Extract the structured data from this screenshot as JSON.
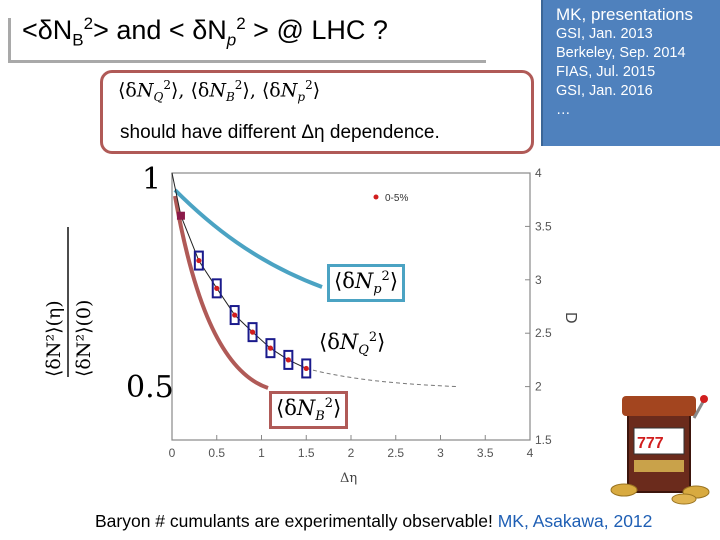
{
  "title": {
    "part1": "<δN",
    "sub1": "B",
    "sup1": "2",
    "part2": "> and < δN",
    "sub2": "p",
    "sup2": "2",
    "part3": " > @ LHC ?"
  },
  "box": {
    "formula": "⟨δN_Q²⟩, ⟨δN_B²⟩, ⟨δN_p²⟩",
    "text": "should have different Δη dependence."
  },
  "presentations": {
    "title": "MK, presentations",
    "items": [
      "GSI, Jan. 2013",
      "Berkeley, Sep. 2014",
      "FIAS, Jul. 2015",
      "GSI, Jan. 2016",
      "…"
    ]
  },
  "footer": {
    "text": "Baryon # cumulants are experimentally observable! ",
    "ref": "MK, Asakawa, 2012"
  },
  "plot": {
    "y_label_top": "1",
    "y_label_bottom": "0.5",
    "x_axis_title": "Δη",
    "right_axis_title": "D",
    "legend": "0-5%",
    "x_ticks": [
      "0",
      "0.5",
      "1",
      "1.5",
      "2",
      "2.5",
      "3",
      "3.5",
      "4"
    ],
    "y_ticks": [
      "4",
      "3.5",
      "3",
      "2.5",
      "2",
      "1.5"
    ],
    "labels": {
      "np": "⟨δN_p²⟩",
      "nq": "⟨δN_Q²⟩",
      "nb": "⟨δN_B²⟩"
    },
    "colors": {
      "np": "#4ba3c3",
      "nb": "#b05a57",
      "data": "#1a1a8c",
      "points": "#d11e1e"
    }
  },
  "chart_data": {
    "type": "scatter",
    "xlabel": "Δη",
    "ylabel": "D",
    "xlim": [
      0,
      4
    ],
    "ylim": [
      1.5,
      4
    ],
    "series": [
      {
        "name": "0-5%",
        "x": [
          0.1,
          0.3,
          0.5,
          0.7,
          0.9,
          1.1,
          1.3,
          1.5
        ],
        "y": [
          3.6,
          3.18,
          2.92,
          2.67,
          2.51,
          2.36,
          2.25,
          2.17
        ]
      }
    ]
  }
}
